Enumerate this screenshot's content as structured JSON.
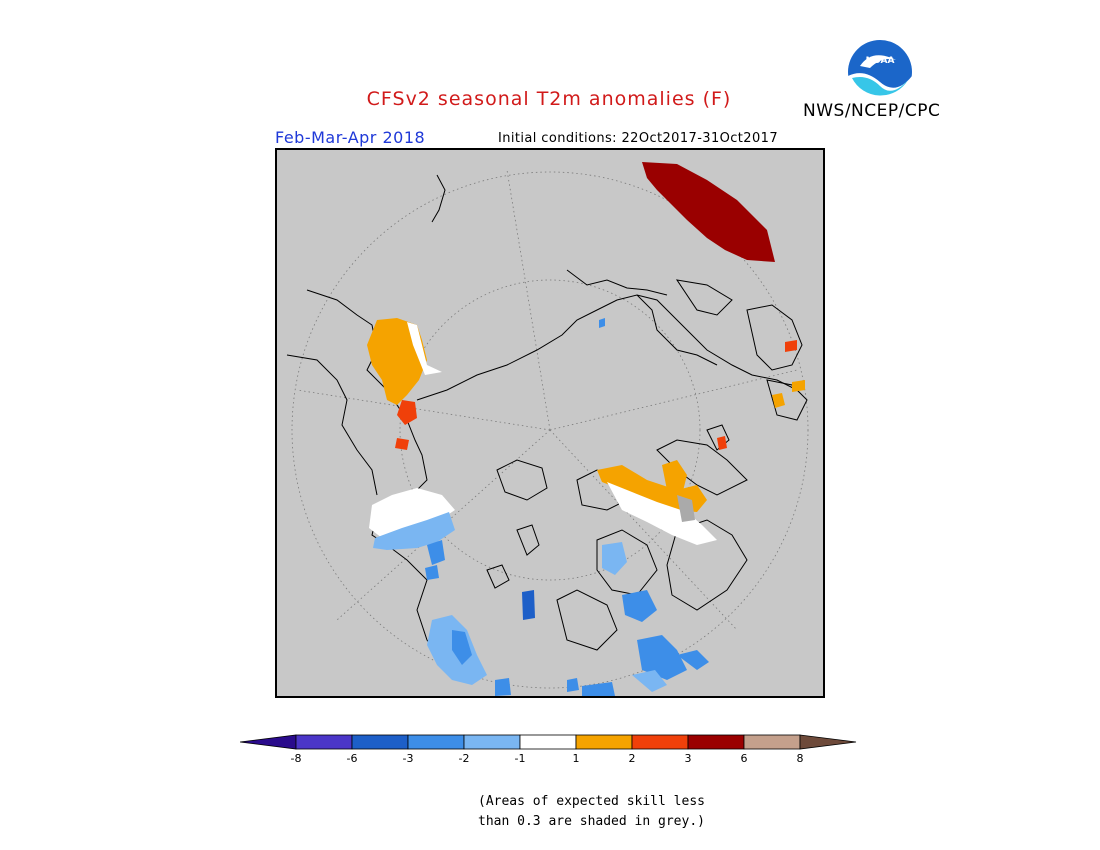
{
  "header": {
    "title": "CFSv2 seasonal T2m anomalies (F)",
    "agency": "NWS/NCEP/CPC",
    "logo_text": "NOAA",
    "period": "Feb-Mar-Apr 2018",
    "initial_conditions": "Initial conditions: 22Oct2017-31Oct2017"
  },
  "colors": {
    "title": "#d11a1a",
    "period": "#1f39d8",
    "grey_mask": "#c8c8c8"
  },
  "legend": {
    "bins": [
      {
        "color": "#2a0b8c"
      },
      {
        "color": "#4b36c8"
      },
      {
        "color": "#1d5fc8"
      },
      {
        "color": "#3d8ee8"
      },
      {
        "color": "#7ab6f2"
      },
      {
        "color": "#ffffff"
      },
      {
        "color": "#f5a300"
      },
      {
        "color": "#f0400a"
      },
      {
        "color": "#9a0000"
      },
      {
        "color": "#c4a08c"
      },
      {
        "color": "#6e4a3a"
      }
    ],
    "ticks": [
      "-8",
      "-6",
      "-3",
      "-2",
      "-1",
      "1",
      "2",
      "3",
      "6",
      "8"
    ]
  },
  "note": {
    "line1": "(Areas of expected skill less",
    "line2": "than 0.3 are shaded in grey.)"
  }
}
